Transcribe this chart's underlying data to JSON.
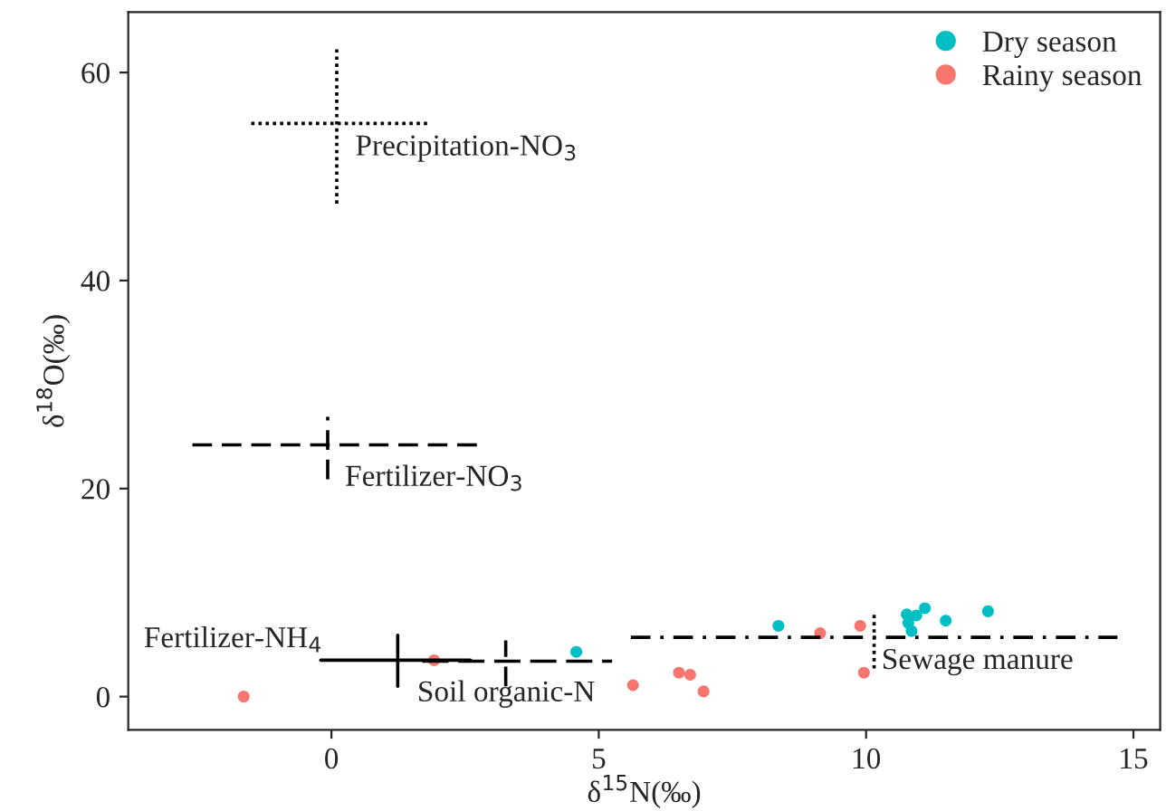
{
  "chart_data": {
    "type": "scatter",
    "xlabel": "δ$^{15}$N(‰)",
    "ylabel": "δ$^{18}$O(‰)",
    "xlim": [
      -3.8,
      15.5
    ],
    "ylim": [
      -3.2,
      65.8
    ],
    "xticks": [
      0,
      5,
      10,
      15
    ],
    "yticks": [
      0,
      20,
      40,
      60
    ],
    "grid": false,
    "legend": "top right",
    "marker": "circle",
    "series": [
      {
        "name": "Dry season",
        "color": "#00bfc4",
        "x": [
          8.36,
          10.76,
          10.94,
          11.1,
          10.79,
          10.85,
          11.49,
          12.28,
          4.58
        ],
        "values": [
          6.8,
          7.9,
          7.8,
          8.5,
          7.1,
          6.3,
          7.3,
          8.2,
          4.3
        ]
      },
      {
        "name": "Rainy season",
        "color": "#f8766d",
        "x": [
          -1.64,
          1.92,
          5.64,
          6.5,
          6.71,
          6.96,
          9.14,
          9.89,
          9.96
        ],
        "values": [
          0.0,
          3.5,
          1.1,
          2.3,
          2.1,
          0.5,
          6.1,
          6.8,
          2.3
        ]
      },
      {
        "type": "line",
        "color": "#000000",
        "line_style": "dotted",
        "marker": "none",
        "x": [
          -1.5,
          1.8
        ],
        "values": [
          55.1,
          55.1
        ]
      },
      {
        "type": "line",
        "color": "#000000",
        "line_style": "dotted",
        "marker": "none",
        "x": [
          0.1,
          0.1
        ],
        "values": [
          47.4,
          62.6
        ]
      },
      {
        "type": "line",
        "color": "#000000",
        "line_style": "dashed",
        "marker": "none",
        "x": [
          -2.6,
          2.8
        ],
        "values": [
          24.2,
          24.2
        ]
      },
      {
        "type": "line",
        "color": "#000000",
        "line_style": "dashed",
        "marker": "none",
        "x": [
          -0.07,
          -0.07
        ],
        "values": [
          20.9,
          26.9
        ]
      },
      {
        "type": "line",
        "color": "#000000",
        "line_style": "solid",
        "marker": "none",
        "x": [
          -0.2,
          2.6
        ],
        "values": [
          3.5,
          3.5
        ]
      },
      {
        "type": "line",
        "color": "#000000",
        "line_style": "solid",
        "marker": "none",
        "x": [
          1.24,
          1.24
        ],
        "values": [
          1.0,
          5.9
        ]
      },
      {
        "type": "line",
        "color": "#000000",
        "line_style": "longdash",
        "marker": "none",
        "x": [
          1.7,
          5.25
        ],
        "values": [
          3.4,
          3.4
        ]
      },
      {
        "type": "line",
        "color": "#000000",
        "line_style": "dashed",
        "marker": "none",
        "x": [
          3.26,
          3.26
        ],
        "values": [
          1.0,
          5.4
        ]
      },
      {
        "type": "line",
        "color": "#000000",
        "line_style": "dashdot",
        "marker": "none",
        "x": [
          5.6,
          14.7
        ],
        "values": [
          5.7,
          5.7
        ]
      },
      {
        "type": "line",
        "color": "#000000",
        "line_style": "dotted",
        "marker": "none",
        "x": [
          10.15,
          10.15
        ],
        "values": [
          2.7,
          8.1
        ]
      }
    ],
    "annotations": [
      "Precipitation-NO$_{3}$",
      "Fertilizer-NO$_{3}$",
      "Fertilizer-NH$_{4}$",
      "Soil organic-N",
      "Sewage manure"
    ]
  }
}
